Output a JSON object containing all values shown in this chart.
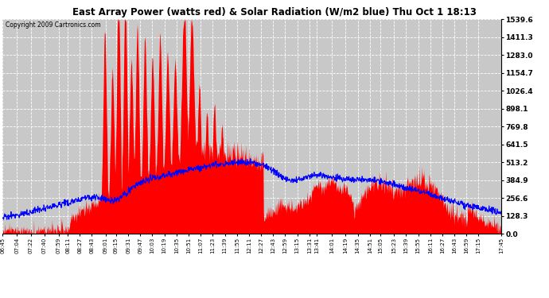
{
  "title": "East Array Power (watts red) & Solar Radiation (W/m2 blue) Thu Oct 1 18:13",
  "copyright_text": "Copyright 2009 Cartronics.com",
  "y_max": 1539.6,
  "y_min": 0.0,
  "y_ticks": [
    0.0,
    128.3,
    256.6,
    384.9,
    513.2,
    641.5,
    769.8,
    898.1,
    1026.4,
    1154.7,
    1283.0,
    1411.3,
    1539.6
  ],
  "plot_bg_color": "#c8c8c8",
  "x_tick_labels": [
    "06:45",
    "07:04",
    "07:22",
    "07:40",
    "07:59",
    "08:11",
    "08:27",
    "08:43",
    "09:01",
    "09:15",
    "09:31",
    "09:47",
    "10:03",
    "10:19",
    "10:35",
    "10:51",
    "11:07",
    "11:23",
    "11:39",
    "11:55",
    "12:11",
    "12:27",
    "12:43",
    "12:59",
    "13:15",
    "13:31",
    "13:41",
    "14:01",
    "14:19",
    "14:35",
    "14:51",
    "15:05",
    "15:23",
    "15:39",
    "15:55",
    "16:11",
    "16:27",
    "16:43",
    "16:59",
    "17:15",
    "17:45"
  ]
}
